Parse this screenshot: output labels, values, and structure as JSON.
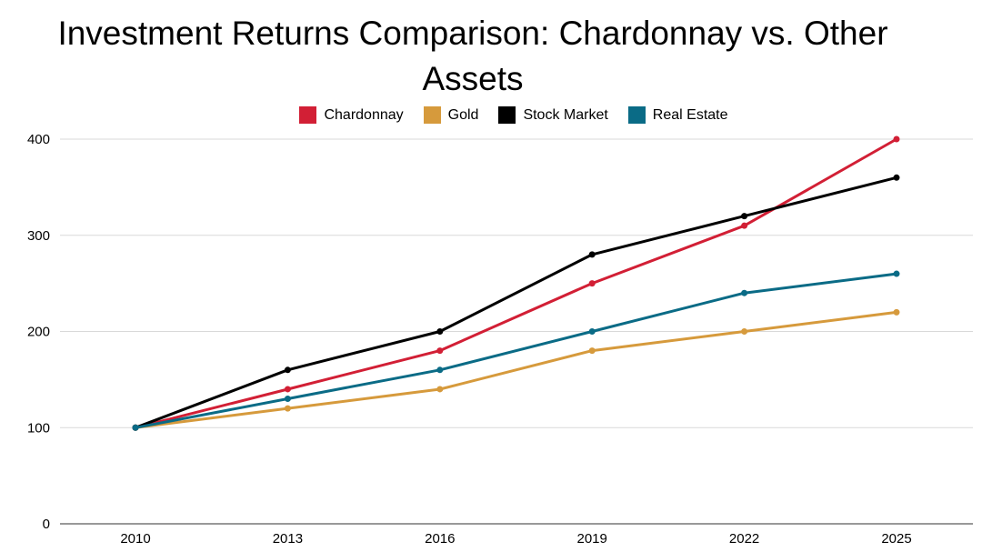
{
  "chart_data": {
    "type": "line",
    "title": "Investment Returns Comparison: Chardonnay vs. Other Assets",
    "xlabel": "",
    "ylabel": "",
    "categories": [
      "2010",
      "2013",
      "2016",
      "2019",
      "2022",
      "2025"
    ],
    "ylim": [
      0,
      400
    ],
    "yticks": [
      "0",
      "100",
      "200",
      "300",
      "400"
    ],
    "grid": true,
    "legend_position": "top-center",
    "series": [
      {
        "name": "Chardonnay",
        "color": "#d21f35",
        "values": [
          100,
          140,
          180,
          250,
          310,
          400
        ]
      },
      {
        "name": "Gold",
        "color": "#d69a3c",
        "values": [
          100,
          120,
          140,
          180,
          200,
          220
        ]
      },
      {
        "name": "Stock Market",
        "color": "#000000",
        "values": [
          100,
          160,
          200,
          280,
          320,
          360
        ]
      },
      {
        "name": "Real Estate",
        "color": "#0a6b86",
        "values": [
          100,
          130,
          160,
          200,
          240,
          260
        ]
      }
    ]
  }
}
